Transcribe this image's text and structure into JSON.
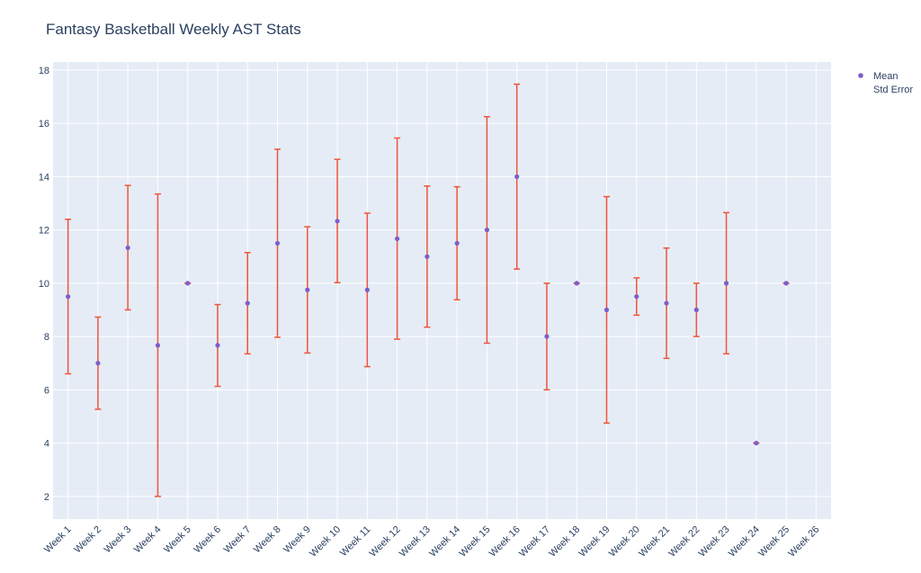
{
  "chart_data": {
    "type": "scatter",
    "title": "Fantasy Basketball Weekly AST Stats",
    "xlabel": "",
    "ylabel": "",
    "categories": [
      "Week 1",
      "Week 2",
      "Week 3",
      "Week 4",
      "Week 5",
      "Week 6",
      "Week 7",
      "Week 8",
      "Week 9",
      "Week 10",
      "Week 11",
      "Week 12",
      "Week 13",
      "Week 14",
      "Week 15",
      "Week 16",
      "Week 17",
      "Week 18",
      "Week 19",
      "Week 20",
      "Week 21",
      "Week 22",
      "Week 23",
      "Week 24",
      "Week 25",
      "Week 26"
    ],
    "ylim": [
      1.15,
      18.3
    ],
    "yticks": [
      2,
      4,
      6,
      8,
      10,
      12,
      14,
      16,
      18
    ],
    "grid": true,
    "legend_position": "top-right",
    "series": [
      {
        "name": "Mean",
        "mode": "markers",
        "color": "#7b5fc9",
        "values": [
          9.5,
          7.0,
          11.33,
          7.67,
          10.0,
          7.67,
          9.25,
          11.5,
          9.75,
          12.33,
          9.75,
          11.67,
          11.0,
          11.5,
          12.0,
          14.0,
          8.0,
          10.0,
          9.0,
          9.5,
          9.25,
          9.0,
          10.0,
          4.0,
          10.0,
          null
        ]
      },
      {
        "name": "Std Error",
        "mode": "error-bars",
        "color": "#ef553b",
        "lower": [
          6.6,
          5.27,
          9.0,
          2.0,
          10.0,
          6.13,
          7.35,
          7.97,
          7.38,
          10.02,
          6.87,
          7.9,
          8.35,
          9.38,
          7.75,
          10.53,
          6.0,
          10.0,
          4.75,
          8.8,
          7.18,
          8.0,
          7.35,
          4.0,
          10.0,
          null
        ],
        "upper": [
          12.4,
          8.73,
          13.67,
          13.35,
          10.0,
          9.2,
          11.15,
          15.03,
          12.12,
          14.65,
          12.63,
          15.45,
          13.65,
          13.62,
          16.25,
          17.47,
          10.0,
          10.0,
          13.25,
          10.2,
          11.32,
          10.0,
          12.65,
          4.0,
          10.0,
          null
        ]
      }
    ]
  }
}
